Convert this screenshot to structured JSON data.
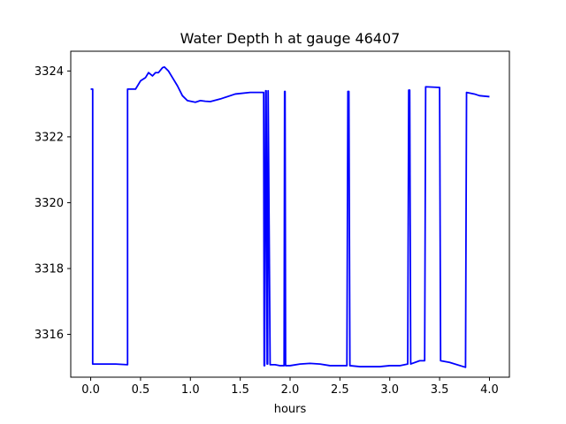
{
  "chart_data": {
    "type": "line",
    "title": "Water Depth h at gauge 46407",
    "xlabel": "hours",
    "ylabel": "",
    "xlim": [
      -0.2,
      4.2
    ],
    "ylim": [
      3314.7,
      3324.6
    ],
    "grid": false,
    "x_ticks": [
      0.0,
      0.5,
      1.0,
      1.5,
      2.0,
      2.5,
      3.0,
      3.5,
      4.0
    ],
    "x_tick_labels": [
      "0.0",
      "0.5",
      "1.0",
      "1.5",
      "2.0",
      "2.5",
      "3.0",
      "3.5",
      "4.0"
    ],
    "y_ticks": [
      3316,
      3318,
      3320,
      3322,
      3324
    ],
    "y_tick_labels": [
      "3316",
      "3318",
      "3320",
      "3322",
      "3324"
    ],
    "series": [
      {
        "color": "#0000ff",
        "x": [
          0.0,
          0.02,
          0.02,
          0.15,
          0.25,
          0.37,
          0.37,
          0.45,
          0.5,
          0.55,
          0.58,
          0.6,
          0.62,
          0.65,
          0.68,
          0.72,
          0.74,
          0.78,
          0.82,
          0.87,
          0.92,
          0.97,
          1.05,
          1.1,
          1.15,
          1.2,
          1.3,
          1.45,
          1.6,
          1.7,
          1.735,
          1.74,
          1.745,
          1.755,
          1.76,
          1.77,
          1.775,
          1.78,
          1.8,
          1.85,
          1.9,
          1.94,
          1.945,
          1.95,
          1.955,
          1.96,
          2.0,
          2.1,
          2.2,
          2.3,
          2.4,
          2.5,
          2.57,
          2.58,
          2.59,
          2.6,
          2.7,
          2.8,
          2.9,
          3.0,
          3.1,
          3.18,
          3.19,
          3.2,
          3.21,
          3.3,
          3.35,
          3.36,
          3.5,
          3.51,
          3.6,
          3.76,
          3.77,
          3.85,
          3.9,
          4.0
        ],
        "y": [
          3323.45,
          3323.45,
          3315.1,
          3315.1,
          3315.1,
          3315.08,
          3323.45,
          3323.45,
          3323.7,
          3323.8,
          3323.95,
          3323.9,
          3323.85,
          3323.95,
          3323.95,
          3324.1,
          3324.12,
          3324.0,
          3323.8,
          3323.55,
          3323.25,
          3323.1,
          3323.05,
          3323.1,
          3323.08,
          3323.07,
          3323.15,
          3323.3,
          3323.35,
          3323.35,
          3323.35,
          3315.05,
          3315.05,
          3323.4,
          3323.4,
          3315.1,
          3315.1,
          3323.4,
          3315.08,
          3315.08,
          3315.05,
          3315.05,
          3323.38,
          3323.38,
          3315.05,
          3315.05,
          3315.05,
          3315.1,
          3315.12,
          3315.1,
          3315.05,
          3315.05,
          3315.05,
          3323.38,
          3323.38,
          3315.05,
          3315.02,
          3315.02,
          3315.02,
          3315.05,
          3315.05,
          3315.1,
          3323.42,
          3323.42,
          3315.1,
          3315.2,
          3315.2,
          3323.52,
          3323.5,
          3315.2,
          3315.15,
          3315.0,
          3323.35,
          3323.3,
          3323.25,
          3323.22
        ]
      }
    ]
  }
}
